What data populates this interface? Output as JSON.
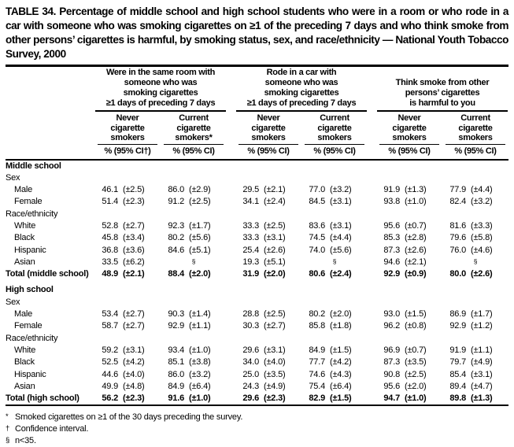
{
  "title": "TABLE 34. Percentage of middle school and high school students who were in a room or who rode in a car with someone who was smoking cigarettes on ≥1 of the preceding 7 days and who think smoke from other persons’ cigarettes is harmful, by smoking status, sex, and race/ethnicity — National Youth Tobacco Survey, 2000",
  "table": {
    "groups": [
      {
        "title": "Were in the same room with\nsomeone who was\nsmoking cigarettes\n≥1 days of preceding 7 days",
        "columns": [
          {
            "head": "Never\ncigarette\nsmokers",
            "measure": "% (95% CI†)"
          },
          {
            "head": "Current\ncigarette\nsmokers*",
            "measure": "% (95% CI)"
          }
        ]
      },
      {
        "title": "Rode in a car with\nsomeone who was\nsmoking cigarettes\n≥1 days of preceding 7 days",
        "columns": [
          {
            "head": "Never\ncigarette\nsmokers",
            "measure": "% (95% CI)"
          },
          {
            "head": "Current\ncigarette\nsmokers",
            "measure": "% (95% CI)"
          }
        ]
      },
      {
        "title": "Think smoke from other\npersons’ cigarettes\nis harmful to you",
        "columns": [
          {
            "head": "Never\ncigarette\nsmokers",
            "measure": "% (95% CI)"
          },
          {
            "head": "Current\ncigarette\nsmokers",
            "measure": "% (95% CI)"
          }
        ]
      }
    ],
    "rows": [
      {
        "label": "Middle school",
        "type": "section"
      },
      {
        "label": "Sex",
        "type": "group"
      },
      {
        "label": "Male",
        "type": "data",
        "cells": [
          [
            "46.1",
            "(±2.5)"
          ],
          [
            "86.0",
            "(±2.9)"
          ],
          [
            "29.5",
            "(±2.1)"
          ],
          [
            "77.0",
            "(±3.2)"
          ],
          [
            "91.9",
            "(±1.3)"
          ],
          [
            "77.9",
            "(±4.4)"
          ]
        ]
      },
      {
        "label": "Female",
        "type": "data",
        "cells": [
          [
            "51.4",
            "(±2.3)"
          ],
          [
            "91.2",
            "(±2.5)"
          ],
          [
            "34.1",
            "(±2.4)"
          ],
          [
            "84.5",
            "(±3.1)"
          ],
          [
            "93.8",
            "(±1.0)"
          ],
          [
            "82.4",
            "(±3.2)"
          ]
        ]
      },
      {
        "label": "Race/ethnicity",
        "type": "group"
      },
      {
        "label": "White",
        "type": "data",
        "cells": [
          [
            "52.8",
            "(±2.7)"
          ],
          [
            "92.3",
            "(±1.7)"
          ],
          [
            "33.3",
            "(±2.5)"
          ],
          [
            "83.6",
            "(±3.1)"
          ],
          [
            "95.6",
            "(±0.7)"
          ],
          [
            "81.6",
            "(±3.3)"
          ]
        ]
      },
      {
        "label": "Black",
        "type": "data",
        "cells": [
          [
            "45.8",
            "(±3.4)"
          ],
          [
            "80.2",
            "(±5.6)"
          ],
          [
            "33.3",
            "(±3.1)"
          ],
          [
            "74.5",
            "(±4.4)"
          ],
          [
            "85.3",
            "(±2.8)"
          ],
          [
            "79.6",
            "(±5.8)"
          ]
        ]
      },
      {
        "label": "Hispanic",
        "type": "data",
        "cells": [
          [
            "36.8",
            "(±3.6)"
          ],
          [
            "84.6",
            "(±5.1)"
          ],
          [
            "25.4",
            "(±2.6)"
          ],
          [
            "74.0",
            "(±5.6)"
          ],
          [
            "87.3",
            "(±2.6)"
          ],
          [
            "76.0",
            "(±4.6)"
          ]
        ]
      },
      {
        "label": "Asian",
        "type": "data",
        "cells": [
          [
            "33.5",
            "(±6.2)"
          ],
          [
            "§"
          ],
          [
            "19.3",
            "(±5.1)"
          ],
          [
            "§"
          ],
          [
            "94.6",
            "(±2.1)"
          ],
          [
            "§"
          ]
        ]
      },
      {
        "label": "Total (middle school)",
        "type": "total",
        "cells": [
          [
            "48.9",
            "(±2.1)"
          ],
          [
            "88.4",
            "(±2.0)"
          ],
          [
            "31.9",
            "(±2.0)"
          ],
          [
            "80.6",
            "(±2.4)"
          ],
          [
            "92.9",
            "(±0.9)"
          ],
          [
            "80.0",
            "(±2.6)"
          ]
        ]
      },
      {
        "label": "High school",
        "type": "section",
        "gap": true
      },
      {
        "label": "Sex",
        "type": "group"
      },
      {
        "label": "Male",
        "type": "data",
        "cells": [
          [
            "53.4",
            "(±2.7)"
          ],
          [
            "90.3",
            "(±1.4)"
          ],
          [
            "28.8",
            "(±2.5)"
          ],
          [
            "80.2",
            "(±2.0)"
          ],
          [
            "93.0",
            "(±1.5)"
          ],
          [
            "86.9",
            "(±1.7)"
          ]
        ]
      },
      {
        "label": "Female",
        "type": "data",
        "cells": [
          [
            "58.7",
            "(±2.7)"
          ],
          [
            "92.9",
            "(±1.1)"
          ],
          [
            "30.3",
            "(±2.7)"
          ],
          [
            "85.8",
            "(±1.8)"
          ],
          [
            "96.2",
            "(±0.8)"
          ],
          [
            "92.9",
            "(±1.2)"
          ]
        ]
      },
      {
        "label": "Race/ethnicity",
        "type": "group"
      },
      {
        "label": "White",
        "type": "data",
        "cells": [
          [
            "59.2",
            "(±3.1)"
          ],
          [
            "93.4",
            "(±1.0)"
          ],
          [
            "29.6",
            "(±3.1)"
          ],
          [
            "84.9",
            "(±1.5)"
          ],
          [
            "96.9",
            "(±0.7)"
          ],
          [
            "91.9",
            "(±1.1)"
          ]
        ]
      },
      {
        "label": "Black",
        "type": "data",
        "cells": [
          [
            "52.5",
            "(±4.2)"
          ],
          [
            "85.1",
            "(±3.8)"
          ],
          [
            "34.0",
            "(±4.0)"
          ],
          [
            "77.7",
            "(±4.2)"
          ],
          [
            "87.3",
            "(±3.5)"
          ],
          [
            "79.7",
            "(±4.9)"
          ]
        ]
      },
      {
        "label": "Hispanic",
        "type": "data",
        "cells": [
          [
            "44.6",
            "(±4.0)"
          ],
          [
            "86.0",
            "(±3.2)"
          ],
          [
            "25.0",
            "(±3.5)"
          ],
          [
            "74.6",
            "(±4.3)"
          ],
          [
            "90.8",
            "(±2.5)"
          ],
          [
            "85.4",
            "(±3.1)"
          ]
        ]
      },
      {
        "label": "Asian",
        "type": "data",
        "cells": [
          [
            "49.9",
            "(±4.8)"
          ],
          [
            "84.9",
            "(±6.4)"
          ],
          [
            "24.3",
            "(±4.9)"
          ],
          [
            "75.4",
            "(±6.4)"
          ],
          [
            "95.6",
            "(±2.0)"
          ],
          [
            "89.4",
            "(±4.7)"
          ]
        ]
      },
      {
        "label": "Total (high school)",
        "type": "total",
        "cells": [
          [
            "56.2",
            "(±2.3)"
          ],
          [
            "91.6",
            "(±1.0)"
          ],
          [
            "29.6",
            "(±2.3)"
          ],
          [
            "82.9",
            "(±1.5)"
          ],
          [
            "94.7",
            "(±1.0)"
          ],
          [
            "89.8",
            "(±1.3)"
          ]
        ]
      }
    ]
  },
  "footnotes": [
    {
      "symbol": "*",
      "text": "Smoked cigarettes on ≥1 of the 30 days preceding the survey."
    },
    {
      "symbol": "†",
      "text": "Confidence interval."
    },
    {
      "symbol": "§",
      "text": "n<35."
    }
  ]
}
